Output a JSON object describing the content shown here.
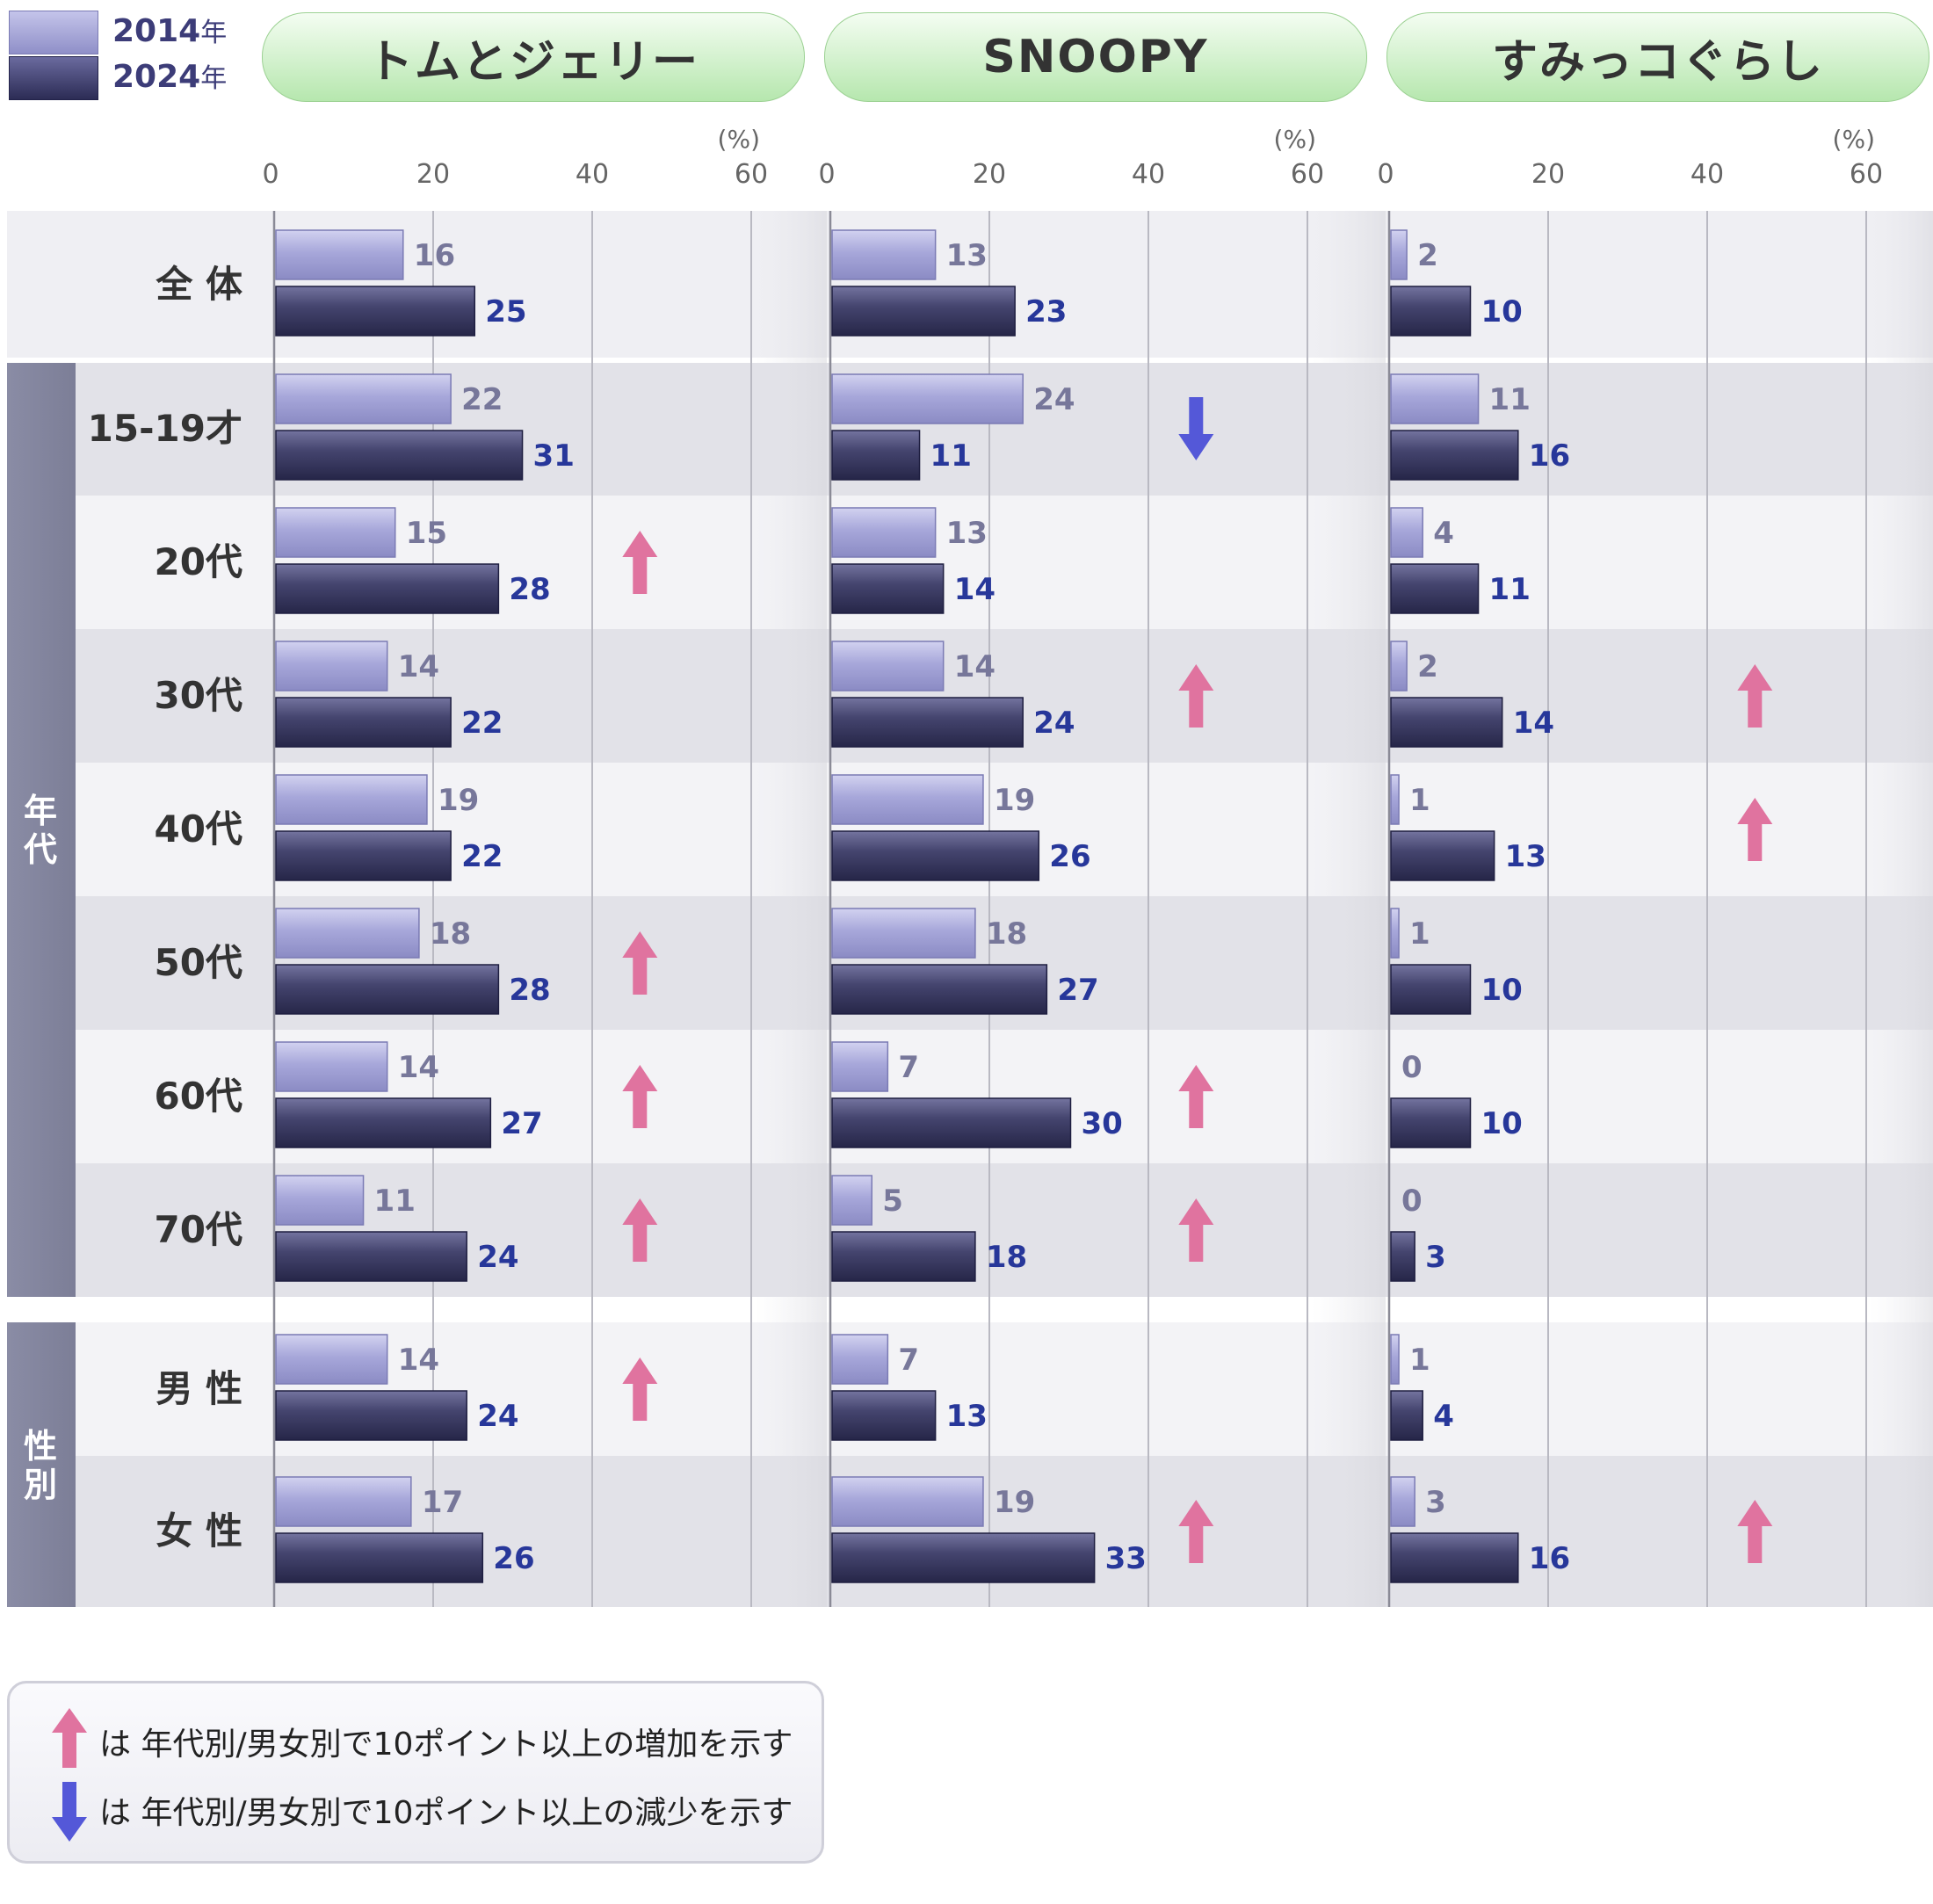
{
  "legend": {
    "y2014_num": "2014",
    "y2024_num": "2024",
    "year_suffix": "年"
  },
  "chart_data": {
    "type": "bar",
    "unit": "(%)",
    "xlim": [
      0,
      60
    ],
    "ticks": [
      "0",
      "20",
      "40",
      "60"
    ],
    "categories": [
      "全 体",
      "15-19才",
      "20代",
      "30代",
      "40代",
      "50代",
      "60代",
      "70代",
      "男 性",
      "女 性"
    ],
    "groups": {
      "age": "年\n代",
      "sex": "性\n別"
    },
    "panels": [
      {
        "title": "トムとジェリー",
        "series": [
          {
            "name": "2014年",
            "values": [
              16,
              22,
              15,
              14,
              19,
              18,
              14,
              11,
              14,
              17
            ]
          },
          {
            "name": "2024年",
            "values": [
              25,
              31,
              28,
              22,
              22,
              28,
              27,
              24,
              24,
              26
            ]
          }
        ],
        "arrows": [
          "",
          "",
          "up",
          "",
          "",
          "up",
          "up",
          "up",
          "up",
          ""
        ]
      },
      {
        "title": "SNOOPY",
        "series": [
          {
            "name": "2014年",
            "values": [
              13,
              24,
              13,
              14,
              19,
              18,
              7,
              5,
              7,
              19
            ]
          },
          {
            "name": "2024年",
            "values": [
              23,
              11,
              14,
              24,
              26,
              27,
              30,
              18,
              13,
              33
            ]
          }
        ],
        "arrows": [
          "",
          "down",
          "",
          "up",
          "",
          "",
          "up",
          "up",
          "",
          "up"
        ]
      },
      {
        "title": "すみっコぐらし",
        "series": [
          {
            "name": "2014年",
            "values": [
              2,
              11,
              4,
              2,
              1,
              1,
              0,
              0,
              1,
              3
            ]
          },
          {
            "name": "2024年",
            "values": [
              10,
              16,
              11,
              14,
              13,
              10,
              10,
              3,
              4,
              16
            ]
          }
        ],
        "arrows": [
          "",
          "",
          "",
          "up",
          "up",
          "",
          "",
          "",
          "",
          "up"
        ]
      }
    ],
    "colors": {
      "bar2014": "#9a9ad2",
      "bar2024": "#35355f",
      "label2014": "#77779a",
      "label2024": "#27379a",
      "up": "#e0739f",
      "down": "#5458d8"
    }
  },
  "notes": [
    {
      "arrow": "up",
      "text": "は 年代別/男女別で10ポイント以上の増加を示す"
    },
    {
      "arrow": "down",
      "text": "は 年代別/男女別で10ポイント以上の減少を示す"
    }
  ]
}
